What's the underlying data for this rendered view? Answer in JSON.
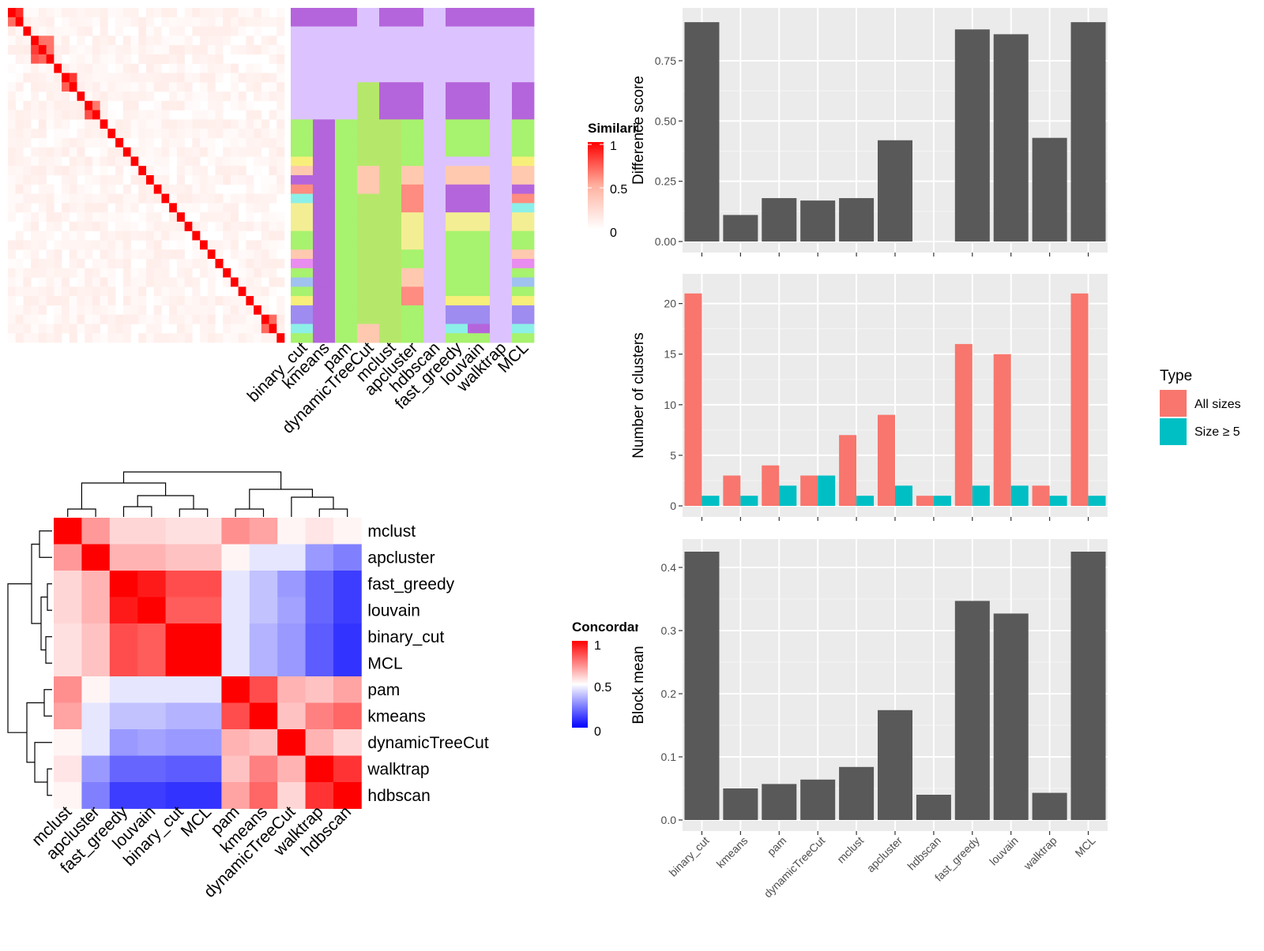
{
  "method_order": [
    "binary_cut",
    "kmeans",
    "pam",
    "dynamicTreeCut",
    "mclust",
    "apcluster",
    "hdbscan",
    "fast_greedy",
    "louvain",
    "walktrap",
    "MCL"
  ],
  "similarity_legend": {
    "title": "Similarity",
    "ticks": [
      "1",
      "0.5",
      "0"
    ]
  },
  "concordance_legend": {
    "title": "Concordance",
    "ticks": [
      "1",
      "0.5",
      "0"
    ]
  },
  "type_legend": {
    "title": "Type",
    "items": [
      {
        "label": "All sizes",
        "color": "#F8766D"
      },
      {
        "label": "Size ≥ 5",
        "color": "#00BFC4"
      }
    ]
  },
  "chart_data": [
    {
      "type": "bar",
      "categories": [
        "binary_cut",
        "kmeans",
        "pam",
        "dynamicTreeCut",
        "mclust",
        "apcluster",
        "hdbscan",
        "fast_greedy",
        "louvain",
        "walktrap",
        "MCL"
      ],
      "values": [
        0.91,
        0.11,
        0.18,
        0.17,
        0.18,
        0.42,
        0,
        0.88,
        0.86,
        0.43,
        0.91
      ],
      "ylabel": "Difference score",
      "ylim": [
        0,
        0.93
      ],
      "yticks": [
        "0.00",
        "0.25",
        "0.50",
        "0.75"
      ],
      "ytick_values": [
        0,
        0.25,
        0.5,
        0.75
      ],
      "grid": true
    },
    {
      "type": "bar",
      "categories": [
        "binary_cut",
        "kmeans",
        "pam",
        "dynamicTreeCut",
        "mclust",
        "apcluster",
        "hdbscan",
        "fast_greedy",
        "louvain",
        "walktrap",
        "MCL"
      ],
      "series": [
        {
          "name": "All sizes",
          "values": [
            21,
            3,
            4,
            3,
            7,
            9,
            1,
            16,
            15,
            2,
            21
          ]
        },
        {
          "name": "Size ≥ 5",
          "values": [
            1,
            1,
            2,
            3,
            1,
            2,
            1,
            2,
            2,
            1,
            1
          ]
        }
      ],
      "ylabel": "Number of clusters",
      "ylim": [
        0,
        22
      ],
      "yticks": [
        "0",
        "5",
        "10",
        "15",
        "20"
      ],
      "ytick_values": [
        0,
        5,
        10,
        15,
        20
      ],
      "legend": "right",
      "grid": true
    },
    {
      "type": "bar",
      "categories": [
        "binary_cut",
        "kmeans",
        "pam",
        "dynamicTreeCut",
        "mclust",
        "apcluster",
        "hdbscan",
        "fast_greedy",
        "louvain",
        "walktrap",
        "MCL"
      ],
      "values": [
        0.425,
        0.05,
        0.057,
        0.064,
        0.084,
        0.174,
        0.04,
        0.347,
        0.327,
        0.043,
        0.425
      ],
      "ylabel": "Block mean",
      "ylim": [
        0,
        0.43
      ],
      "yticks": [
        "0.0",
        "0.1",
        "0.2",
        "0.3",
        "0.4"
      ],
      "ytick_values": [
        0,
        0.1,
        0.2,
        0.3,
        0.4
      ],
      "grid": true
    },
    {
      "type": "heatmap",
      "labels": [
        "mclust",
        "apcluster",
        "fast_greedy",
        "louvain",
        "binary_cut",
        "MCL",
        "pam",
        "kmeans",
        "dynamicTreeCut",
        "walktrap",
        "hdbscan"
      ],
      "values": [
        [
          1.0,
          0.7,
          0.58,
          0.58,
          0.56,
          0.56,
          0.72,
          0.68,
          0.52,
          0.55,
          0.52
        ],
        [
          0.7,
          1.0,
          0.65,
          0.65,
          0.62,
          0.62,
          0.52,
          0.45,
          0.45,
          0.3,
          0.25
        ],
        [
          0.58,
          0.65,
          1.0,
          0.95,
          0.85,
          0.85,
          0.45,
          0.38,
          0.3,
          0.2,
          0.12
        ],
        [
          0.58,
          0.65,
          0.95,
          1.0,
          0.82,
          0.82,
          0.45,
          0.38,
          0.32,
          0.2,
          0.12
        ],
        [
          0.56,
          0.62,
          0.85,
          0.82,
          1.0,
          1.0,
          0.45,
          0.35,
          0.3,
          0.18,
          0.1
        ],
        [
          0.56,
          0.62,
          0.85,
          0.82,
          1.0,
          1.0,
          0.45,
          0.35,
          0.3,
          0.18,
          0.1
        ],
        [
          0.72,
          0.52,
          0.45,
          0.45,
          0.45,
          0.45,
          1.0,
          0.85,
          0.65,
          0.62,
          0.68
        ],
        [
          0.68,
          0.45,
          0.38,
          0.38,
          0.35,
          0.35,
          0.85,
          1.0,
          0.62,
          0.75,
          0.8
        ],
        [
          0.52,
          0.45,
          0.3,
          0.32,
          0.3,
          0.3,
          0.65,
          0.62,
          1.0,
          0.65,
          0.58
        ],
        [
          0.55,
          0.3,
          0.2,
          0.2,
          0.18,
          0.18,
          0.62,
          0.75,
          0.65,
          1.0,
          0.9
        ],
        [
          0.52,
          0.25,
          0.12,
          0.12,
          0.1,
          0.1,
          0.68,
          0.8,
          0.58,
          0.9,
          1.0
        ]
      ],
      "color_range": [
        0,
        1
      ]
    }
  ]
}
